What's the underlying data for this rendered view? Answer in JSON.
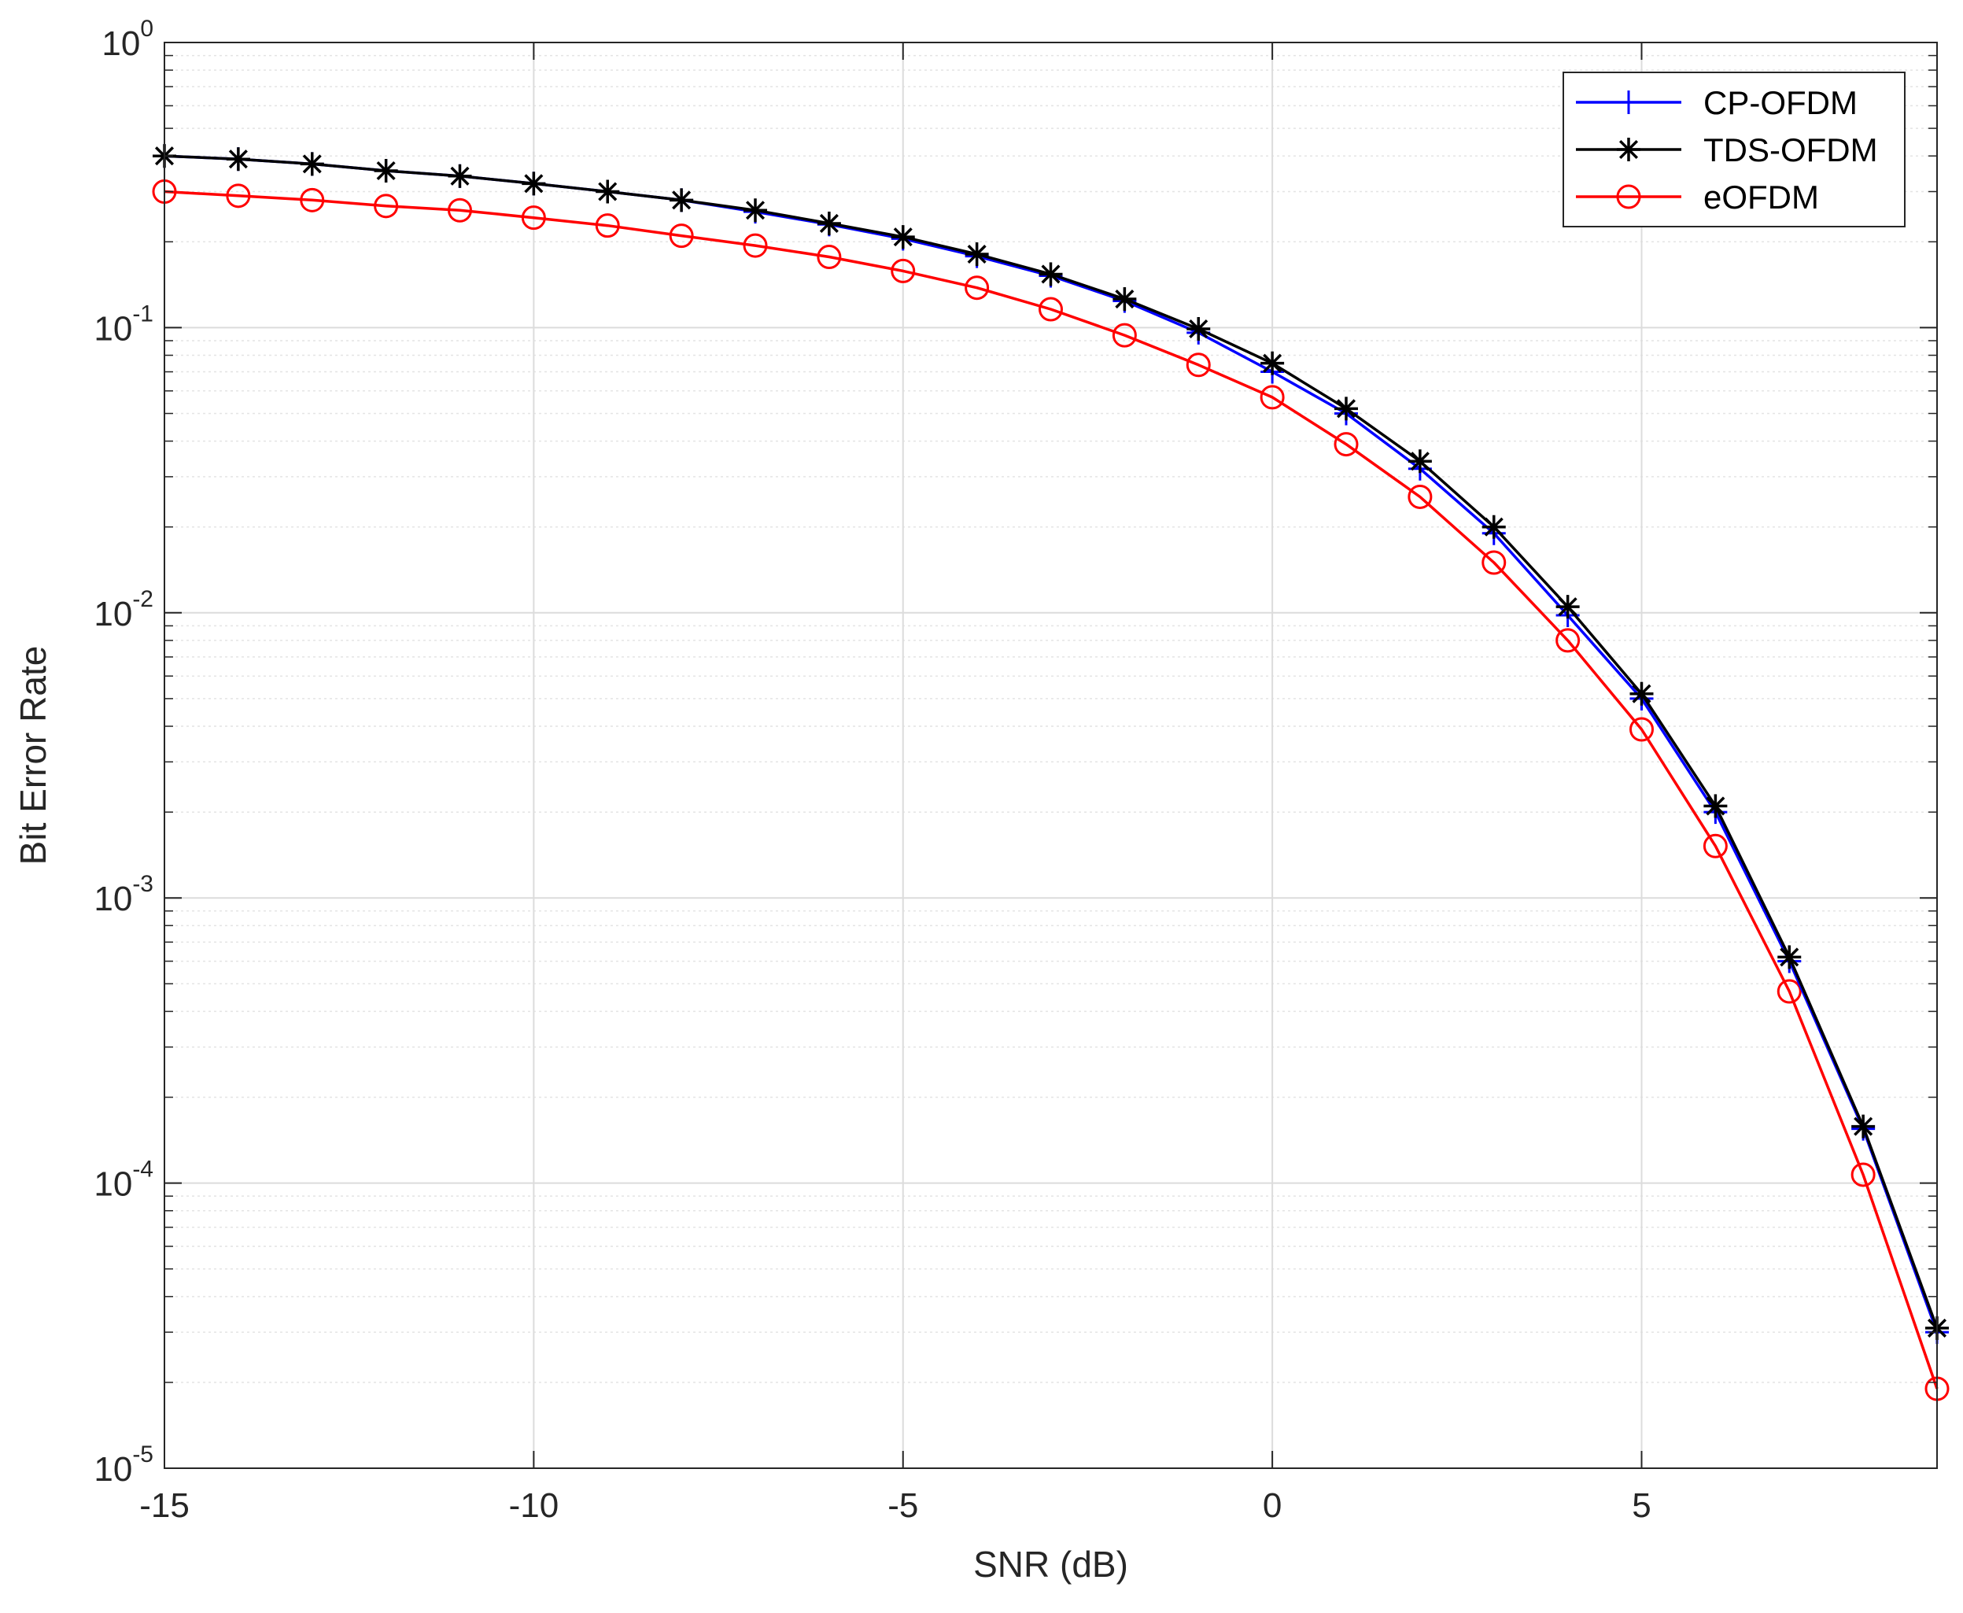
{
  "chart_data": {
    "type": "line",
    "xlabel": "SNR (dB)",
    "ylabel": "Bit Error Rate",
    "xlim": [
      -15,
      9
    ],
    "ylim": [
      1e-05,
      1
    ],
    "yscale": "log",
    "grid": true,
    "legend_position": "top-right",
    "x_ticks": [
      "-15",
      "-10",
      "-5",
      "0",
      "5"
    ],
    "x_tick_values": [
      -15,
      -10,
      -5,
      0,
      5
    ],
    "y_ticks": [
      {
        "base": "10",
        "exp": "0"
      },
      {
        "base": "10",
        "exp": "-1"
      },
      {
        "base": "10",
        "exp": "-2"
      },
      {
        "base": "10",
        "exp": "-3"
      },
      {
        "base": "10",
        "exp": "-4"
      },
      {
        "base": "10",
        "exp": "-5"
      }
    ],
    "y_tick_values": [
      1,
      0.1,
      0.01,
      0.001,
      0.0001,
      1e-05
    ],
    "x": [
      -15,
      -14,
      -13,
      -12,
      -11,
      -10,
      -9,
      -8,
      -7,
      -6,
      -5,
      -4,
      -3,
      -2,
      -1,
      0,
      1,
      2,
      3,
      4,
      5,
      6,
      7,
      8,
      9
    ],
    "series": [
      {
        "name": "CP-OFDM",
        "color": "#0000ff",
        "marker": "plus",
        "values": [
          0.4,
          0.39,
          0.375,
          0.355,
          0.34,
          0.32,
          0.3,
          0.28,
          0.255,
          0.23,
          0.205,
          0.178,
          0.152,
          0.124,
          0.096,
          0.07,
          0.05,
          0.032,
          0.019,
          0.0098,
          0.005,
          0.002,
          0.0006,
          0.000155,
          3e-05
        ]
      },
      {
        "name": "TDS-OFDM",
        "color": "#000000",
        "marker": "asterisk",
        "values": [
          0.4,
          0.39,
          0.375,
          0.355,
          0.34,
          0.32,
          0.3,
          0.28,
          0.258,
          0.232,
          0.208,
          0.181,
          0.154,
          0.126,
          0.099,
          0.075,
          0.052,
          0.034,
          0.02,
          0.0105,
          0.0052,
          0.0021,
          0.00062,
          0.000158,
          3.1e-05
        ]
      },
      {
        "name": "eOFDM",
        "color": "#ff0000",
        "marker": "circle",
        "values": [
          0.3,
          0.29,
          0.28,
          0.267,
          0.258,
          0.243,
          0.228,
          0.21,
          0.194,
          0.177,
          0.158,
          0.138,
          0.116,
          0.094,
          0.074,
          0.057,
          0.039,
          0.0255,
          0.015,
          0.008,
          0.0039,
          0.00152,
          0.00047,
          0.000107,
          1.9e-05
        ]
      }
    ]
  }
}
